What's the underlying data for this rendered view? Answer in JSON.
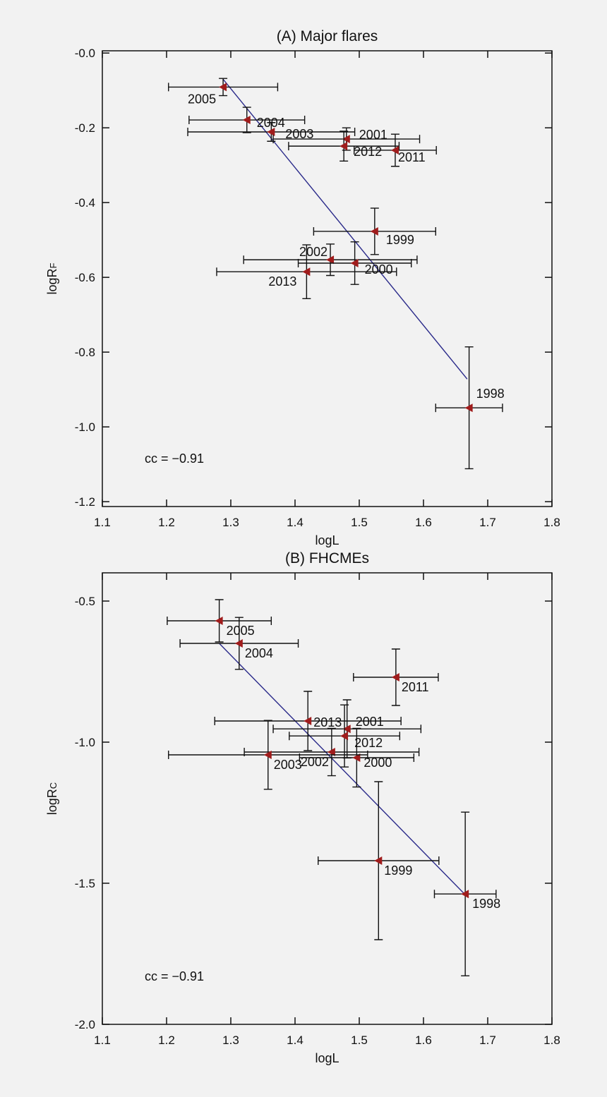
{
  "chart_data": [
    {
      "type": "scatter",
      "title": "(A) Major flares",
      "xlabel": "logL",
      "ylabel": "logR",
      "ylabel_sub": "F",
      "annotation": "cc = −0.91",
      "xlim": [
        1.1,
        1.8
      ],
      "ylim": [
        -1.213,
        0.006
      ],
      "xticks": [
        1.1,
        1.2,
        1.3,
        1.4,
        1.5,
        1.6,
        1.7,
        1.8
      ],
      "yticks": [
        {
          "value": 0,
          "label": "-0.0"
        },
        -0.2,
        -0.4,
        -0.6,
        -0.8,
        {
          "value": -1,
          "label": "-1.0"
        },
        -1.2
      ],
      "color": "#a01c1c",
      "labels": [
        "2005",
        "2004",
        "2003",
        "2001",
        "2012",
        "2011",
        "1999",
        "2002",
        "2000",
        "2013",
        "1998"
      ],
      "x": [
        1.288,
        1.325,
        1.363,
        1.48,
        1.476,
        1.556,
        1.524,
        1.455,
        1.493,
        1.418,
        1.671
      ],
      "values": [
        -0.091,
        -0.179,
        -0.211,
        -0.23,
        -0.249,
        -0.26,
        -0.477,
        -0.553,
        -0.562,
        -0.585,
        -0.949
      ],
      "xerr": [
        0.085,
        0.09,
        0.13,
        0.114,
        0.086,
        0.064,
        0.095,
        0.135,
        0.088,
        0.14,
        0.052
      ],
      "yerr": [
        0.023,
        0.034,
        0.025,
        0.03,
        0.04,
        0.043,
        0.062,
        0.042,
        0.057,
        0.072,
        0.163
      ],
      "fit": {
        "x": [
          1.288,
          1.668
        ],
        "y": [
          -0.07,
          -0.872
        ],
        "color": "#2a2a8a"
      }
    },
    {
      "type": "scatter",
      "title": "(B) FHCMEs",
      "xlabel": "logL",
      "ylabel": "logR",
      "ylabel_sub": "C",
      "annotation": "cc = −0.91",
      "xlim": [
        1.1,
        1.8
      ],
      "ylim": [
        -2.0,
        -0.4
      ],
      "xticks": [
        1.1,
        1.2,
        1.3,
        1.4,
        1.5,
        1.6,
        1.7,
        1.8
      ],
      "yticks": [
        -0.5,
        {
          "value": -1,
          "label": "-1.0"
        },
        -1.5,
        {
          "value": -2,
          "label": "-2.0"
        }
      ],
      "color": "#a01c1c",
      "labels": [
        "2005",
        "2004",
        "2011",
        "2013",
        "2001",
        "2012",
        "2002",
        "2000",
        "2003",
        "1999",
        "1998"
      ],
      "x": [
        1.282,
        1.313,
        1.557,
        1.42,
        1.481,
        1.477,
        1.457,
        1.496,
        1.358,
        1.53,
        1.665
      ],
      "values": [
        -0.57,
        -0.65,
        -0.77,
        -0.925,
        -0.953,
        -0.978,
        -1.035,
        -1.055,
        -1.045,
        -1.42,
        -1.538
      ],
      "xerr": [
        0.081,
        0.092,
        0.066,
        0.145,
        0.115,
        0.086,
        0.136,
        0.089,
        0.155,
        0.094,
        0.048
      ],
      "yerr": [
        0.075,
        0.092,
        0.1,
        0.105,
        0.103,
        0.11,
        0.084,
        0.104,
        0.122,
        0.28,
        0.29
      ],
      "fit": {
        "x": [
          1.282,
          1.669
        ],
        "y": [
          -0.65,
          -1.55
        ],
        "color": "#2a2a8a"
      }
    }
  ]
}
